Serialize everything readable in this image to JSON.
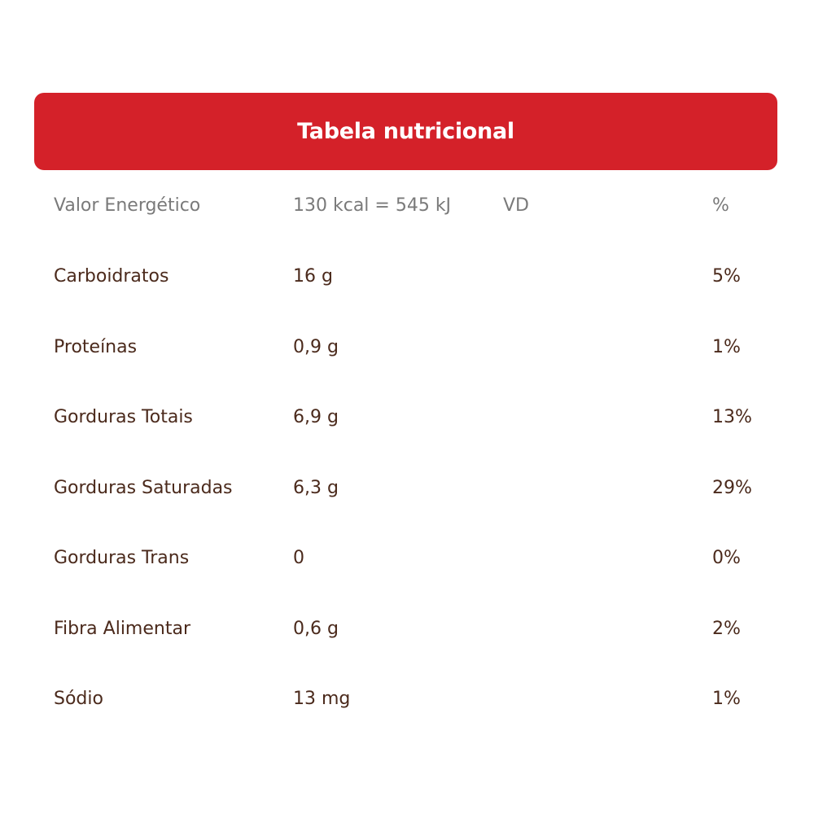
{
  "title": "Tabela nutricional",
  "energy": {
    "label": "Valor Energético",
    "value": "130 kcal = 545 kJ",
    "vd_label": "VD",
    "percent_label": "%"
  },
  "rows": [
    {
      "label": "Carboidratos",
      "value": "16 g",
      "vd": "5%"
    },
    {
      "label": "Proteínas",
      "value": "0,9 g",
      "vd": "1%"
    },
    {
      "label": "Gorduras Totais",
      "value": "6,9 g",
      "vd": "13%"
    },
    {
      "label": "Gorduras Saturadas",
      "value": "6,3 g",
      "vd": "29%"
    },
    {
      "label": "Gorduras Trans",
      "value": "0",
      "vd": "0%"
    },
    {
      "label": "Fibra Alimentar",
      "value": "0,6 g",
      "vd": "2%"
    },
    {
      "label": "Sódio",
      "value": "13 mg",
      "vd": "1%"
    }
  ],
  "colors": {
    "header": "#d42129",
    "text": "#4b2a1c",
    "muted": "#7a7a7a"
  }
}
